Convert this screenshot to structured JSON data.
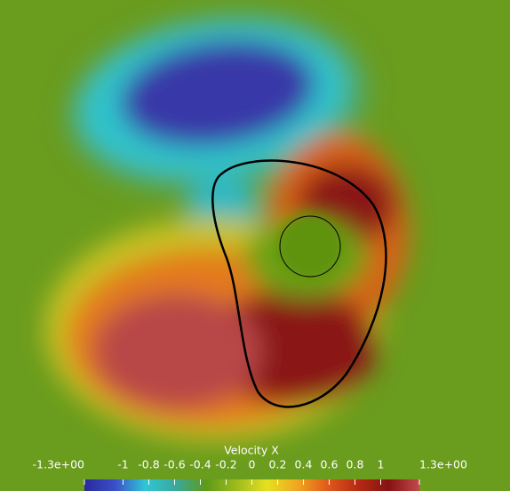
{
  "chart_data": {
    "type": "colorbar",
    "title": "Velocity X",
    "range": [
      -1.3,
      1.3
    ],
    "ticks": [
      {
        "value": -1.3,
        "label": "-1.3e+00"
      },
      -1,
      -0.8,
      -0.6,
      -0.4,
      -0.2,
      0,
      0.2,
      0.4,
      0.6,
      0.8,
      1,
      {
        "value": 1.3,
        "label": "1.3e+00"
      }
    ],
    "colormap": [
      "#2a2a9c",
      "#3a4fc8",
      "#2fc6d6",
      "#3aa89c",
      "#5e9a18",
      "#9ebc1c",
      "#e6e020",
      "#f0a622",
      "#e0581a",
      "#b52a12",
      "#861212",
      "#c24a4a"
    ]
  }
}
